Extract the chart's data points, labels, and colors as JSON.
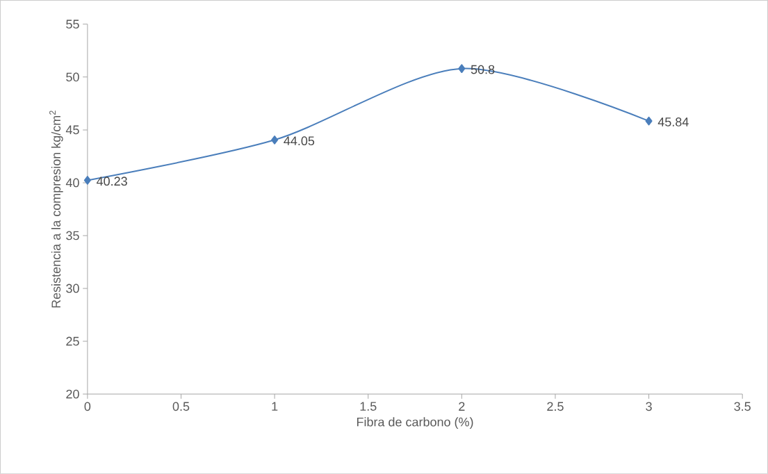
{
  "chart_data": {
    "type": "line",
    "xlabel": "Fibra de carbono (%)",
    "ylabel": "Resistencia a la compresion kg/cm$^{2}$",
    "x": [
      0,
      1,
      2,
      3
    ],
    "series": [
      {
        "color": "#4a7ebb",
        "values": [
          40.23,
          44.05,
          50.8,
          45.84
        ],
        "value_labels": [
          "40.23",
          "44.05",
          "50.8",
          "45.84"
        ]
      }
    ],
    "xlim": [
      0,
      3.5
    ],
    "xticks": [
      0,
      0.5,
      1,
      1.5,
      2,
      2.5,
      3,
      3.5
    ],
    "ylim": [
      20,
      55
    ],
    "yticks": [
      20,
      25,
      30,
      35,
      40,
      45,
      50,
      55
    ],
    "marker": "diamond",
    "line_style": "solid"
  }
}
